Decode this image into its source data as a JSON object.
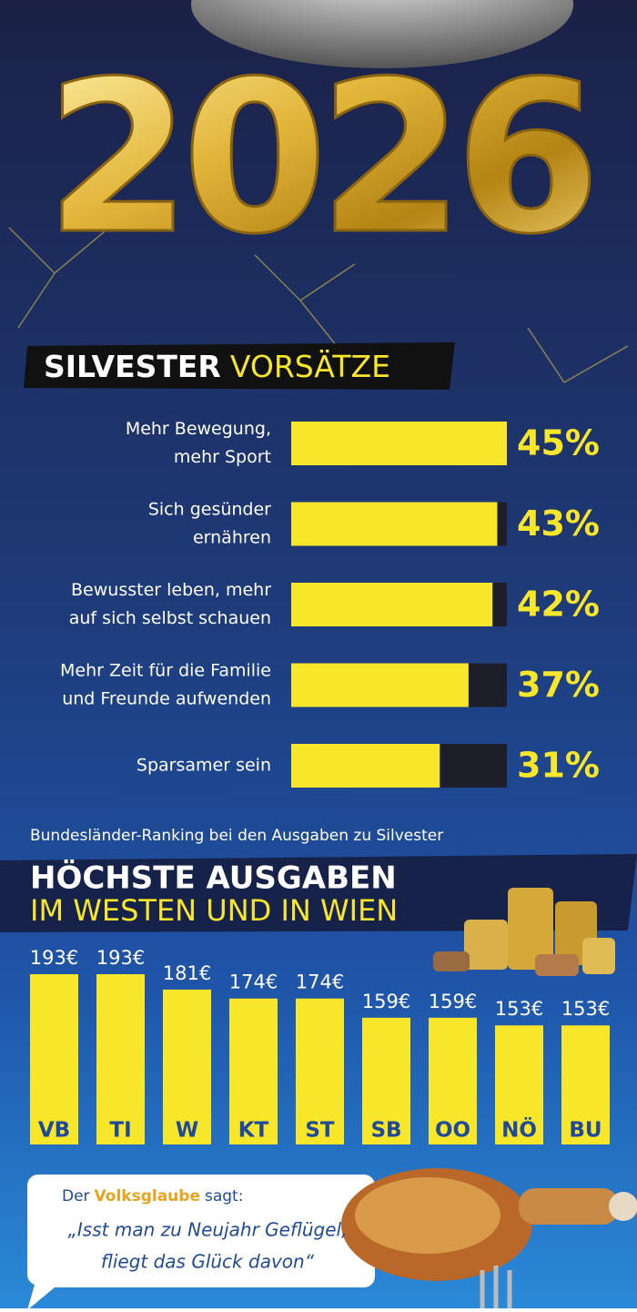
{
  "banner": "2026",
  "chart_data": [
    {
      "type": "bar",
      "orientation": "horizontal",
      "title": [
        "SILVESTER",
        "VORSÄTZE"
      ],
      "categories": [
        [
          "Mehr Bewegung,",
          "mehr Sport"
        ],
        [
          "Sich gesünder",
          "ernähren"
        ],
        [
          "Bewusster leben, mehr",
          "auf sich selbst schauen"
        ],
        [
          "Mehr Zeit für die Familie",
          "und Freunde aufwenden"
        ],
        [
          "Sparsamer sein"
        ]
      ],
      "values": [
        45,
        43,
        42,
        37,
        31
      ],
      "value_labels": [
        "45%",
        "43%",
        "42%",
        "37%",
        "31%"
      ],
      "color": "#f7e629",
      "track_color": "#1e1d2a",
      "xlim": [
        0,
        45
      ]
    },
    {
      "type": "bar",
      "orientation": "vertical",
      "subtitle": "Bundesländer-Ranking bei den Ausgaben zu Silvester",
      "title": [
        "HÖCHSTE AUSGABEN",
        "IM WESTEN UND IN WIEN"
      ],
      "categories": [
        "VB",
        "TI",
        "W",
        "KT",
        "ST",
        "SB",
        "OO",
        "NÖ",
        "BU"
      ],
      "values": [
        193,
        193,
        181,
        174,
        174,
        159,
        159,
        153,
        153
      ],
      "value_labels": [
        "193€",
        "193€",
        "181€",
        "174€",
        "174€",
        "159€",
        "159€",
        "153€",
        "153€"
      ],
      "color": "#f7e629",
      "ylim": [
        60,
        193
      ]
    }
  ],
  "quote": {
    "intro": [
      "Der",
      "Volksglaube",
      "sagt:"
    ],
    "lines": [
      "„Isst man zu Neujahr Geflügel,",
      "fliegt das Glück davon“"
    ]
  }
}
